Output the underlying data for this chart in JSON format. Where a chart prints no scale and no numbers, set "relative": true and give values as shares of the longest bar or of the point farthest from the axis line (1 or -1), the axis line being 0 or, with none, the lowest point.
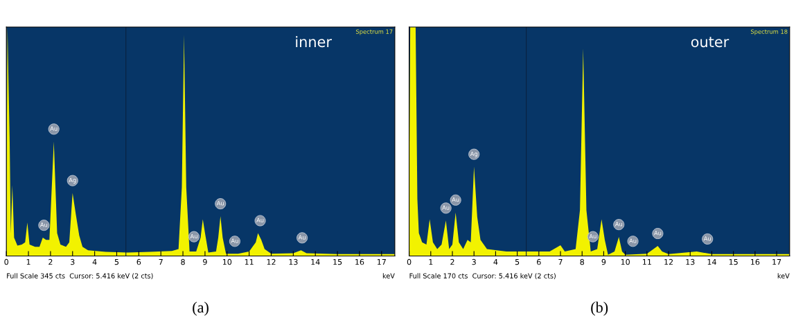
{
  "chart_data": [
    {
      "type": "area",
      "relative": true,
      "xlabel": "keV",
      "xlim": [
        0,
        17.6
      ],
      "xticks": [
        0,
        1,
        2,
        3,
        4,
        5,
        6,
        7,
        8,
        9,
        10,
        11,
        12,
        13,
        14,
        15,
        16,
        17
      ],
      "x": [
        0,
        0.05,
        0.15,
        0.2,
        0.27,
        0.35,
        0.5,
        0.7,
        0.85,
        0.95,
        1.05,
        1.3,
        1.5,
        1.65,
        1.8,
        1.95,
        2.15,
        2.3,
        2.45,
        2.7,
        2.85,
        3.0,
        3.15,
        3.3,
        3.45,
        3.7,
        4.5,
        5.5,
        6.5,
        7.5,
        7.8,
        7.95,
        8.05,
        8.15,
        8.3,
        8.6,
        8.8,
        8.9,
        9.0,
        9.15,
        9.5,
        9.6,
        9.7,
        9.8,
        9.95,
        10.5,
        11.0,
        11.3,
        11.4,
        11.55,
        11.7,
        12,
        13.0,
        13.35,
        13.6,
        15,
        17.6
      ],
      "series": [
        {
          "color": "#f2f200",
          "values": [
            0.2,
            1.0,
            0.5,
            0.1,
            0.31,
            0.08,
            0.045,
            0.05,
            0.06,
            0.146,
            0.05,
            0.04,
            0.04,
            0.08,
            0.07,
            0.07,
            0.5,
            0.1,
            0.05,
            0.04,
            0.06,
            0.275,
            0.18,
            0.09,
            0.04,
            0.025,
            0.018,
            0.015,
            0.018,
            0.022,
            0.03,
            0.3,
            0.966,
            0.3,
            0.02,
            0.02,
            0.08,
            0.16,
            0.1,
            0.015,
            0.02,
            0.08,
            0.174,
            0.08,
            0.01,
            0.01,
            0.02,
            0.06,
            0.1,
            0.07,
            0.03,
            0.01,
            0.012,
            0.025,
            0.012,
            0.008,
            0.008
          ]
        }
      ],
      "ref_lines": [
        {
          "axis": "x",
          "value": 5.416,
          "color": "#0a2240"
        }
      ],
      "annotations": [
        "inner",
        "Spectrum 17",
        "Full Scale 345 cts  Cursor: 5.416 keV (2 cts)",
        "(a)",
        {
          "text": "Au",
          "x": 1.7,
          "y": 0.08
        },
        {
          "text": "Au",
          "x": 2.15,
          "y": 0.5
        },
        {
          "text": "Ag",
          "x": 3.0,
          "y": 0.275
        },
        {
          "text": "Au",
          "x": 8.5,
          "y": 0.03
        },
        {
          "text": "Au",
          "x": 9.7,
          "y": 0.174
        },
        {
          "text": "Au",
          "x": 10.35,
          "y": 0.01
        },
        {
          "text": "Au",
          "x": 11.5,
          "y": 0.1
        },
        {
          "text": "Au",
          "x": 13.4,
          "y": 0.025
        }
      ]
    },
    {
      "type": "area",
      "relative": true,
      "xlabel": "keV",
      "xlim": [
        0,
        17.6
      ],
      "xticks": [
        0,
        1,
        2,
        3,
        4,
        5,
        6,
        7,
        8,
        9,
        10,
        11,
        12,
        13,
        14,
        15,
        16,
        17
      ],
      "x": [
        0,
        0.05,
        0.3,
        0.38,
        0.45,
        0.6,
        0.8,
        0.95,
        1.1,
        1.3,
        1.5,
        1.7,
        1.85,
        2.0,
        2.15,
        2.3,
        2.5,
        2.7,
        2.85,
        3.0,
        3.15,
        3.3,
        3.6,
        4.5,
        5.5,
        6.5,
        7.0,
        7.2,
        7.7,
        7.9,
        8.05,
        8.2,
        8.4,
        8.7,
        8.9,
        9.05,
        9.2,
        9.5,
        9.7,
        9.85,
        10,
        11,
        11.3,
        11.5,
        11.7,
        12,
        13.3,
        14,
        17.6
      ],
      "series": [
        {
          "color": "#f2f200",
          "values": [
            0.3,
            1.0,
            1.0,
            0.25,
            0.1,
            0.06,
            0.05,
            0.16,
            0.06,
            0.03,
            0.05,
            0.155,
            0.03,
            0.05,
            0.19,
            0.06,
            0.03,
            0.07,
            0.06,
            0.39,
            0.17,
            0.07,
            0.03,
            0.02,
            0.02,
            0.02,
            0.047,
            0.02,
            0.03,
            0.2,
            0.907,
            0.2,
            0.02,
            0.03,
            0.16,
            0.07,
            0.005,
            0.02,
            0.083,
            0.02,
            0.005,
            0.01,
            0.03,
            0.044,
            0.02,
            0.008,
            0.02,
            0.008,
            0.008
          ]
        }
      ],
      "ref_lines": [
        {
          "axis": "x",
          "value": 5.416,
          "color": "#0a2240"
        }
      ],
      "annotations": [
        "outer",
        "Spectrum 18",
        "Full Scale 170 cts  Cursor: 5.416 keV (2 cts)",
        "(b)",
        {
          "text": "Au",
          "x": 1.7,
          "y": 0.155
        },
        {
          "text": "Au",
          "x": 2.15,
          "y": 0.19
        },
        {
          "text": "Ag",
          "x": 3.0,
          "y": 0.39
        },
        {
          "text": "Au",
          "x": 8.5,
          "y": 0.03
        },
        {
          "text": "Au",
          "x": 9.7,
          "y": 0.083
        },
        {
          "text": "Au",
          "x": 10.35,
          "y": 0.01
        },
        {
          "text": "Au",
          "x": 11.5,
          "y": 0.044
        },
        {
          "text": "Au",
          "x": 13.8,
          "y": 0.02
        }
      ]
    }
  ]
}
